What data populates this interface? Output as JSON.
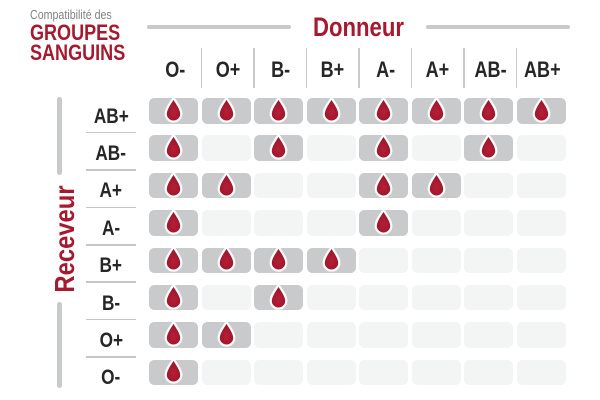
{
  "title": {
    "prefix": "Compatibilité des",
    "line1": "GROUPES",
    "line2": "SANGUINS"
  },
  "axes": {
    "donor": "Donneur",
    "receiver": "Receveur"
  },
  "chart_data": {
    "type": "table",
    "title": "Compatibilité des GROUPES SANGUINS",
    "x_axis_title": "Donneur",
    "y_axis_title": "Receveur",
    "columns": [
      "O-",
      "O+",
      "B-",
      "B+",
      "A-",
      "A+",
      "AB-",
      "AB+"
    ],
    "rows": [
      "AB+",
      "AB-",
      "A+",
      "A-",
      "B+",
      "B-",
      "O+",
      "O-"
    ],
    "matrix": [
      [
        1,
        1,
        1,
        1,
        1,
        1,
        1,
        1
      ],
      [
        1,
        0,
        1,
        0,
        1,
        0,
        1,
        0
      ],
      [
        1,
        1,
        0,
        0,
        1,
        1,
        0,
        0
      ],
      [
        1,
        0,
        0,
        0,
        1,
        0,
        0,
        0
      ],
      [
        1,
        1,
        1,
        1,
        0,
        0,
        0,
        0
      ],
      [
        1,
        0,
        1,
        0,
        0,
        0,
        0,
        0
      ],
      [
        1,
        1,
        0,
        0,
        0,
        0,
        0,
        0
      ],
      [
        1,
        0,
        0,
        0,
        0,
        0,
        0,
        0
      ]
    ],
    "compatible_marker": "blood-drop-icon",
    "legend_position": "none",
    "grid": false
  },
  "colors": {
    "accent_red": "#a6192e",
    "drop_red_light": "#b42038",
    "drop_red_dark": "#971126",
    "cell_filled_gray": "#c9cacb",
    "cell_empty_gray": "#f3f4f4",
    "axis_line_gray": "#c8c9ca",
    "text_dark": "#262626",
    "text_gray": "#808285",
    "background": "#ffffff"
  },
  "icons": {
    "compatible": "blood-drop-icon"
  }
}
